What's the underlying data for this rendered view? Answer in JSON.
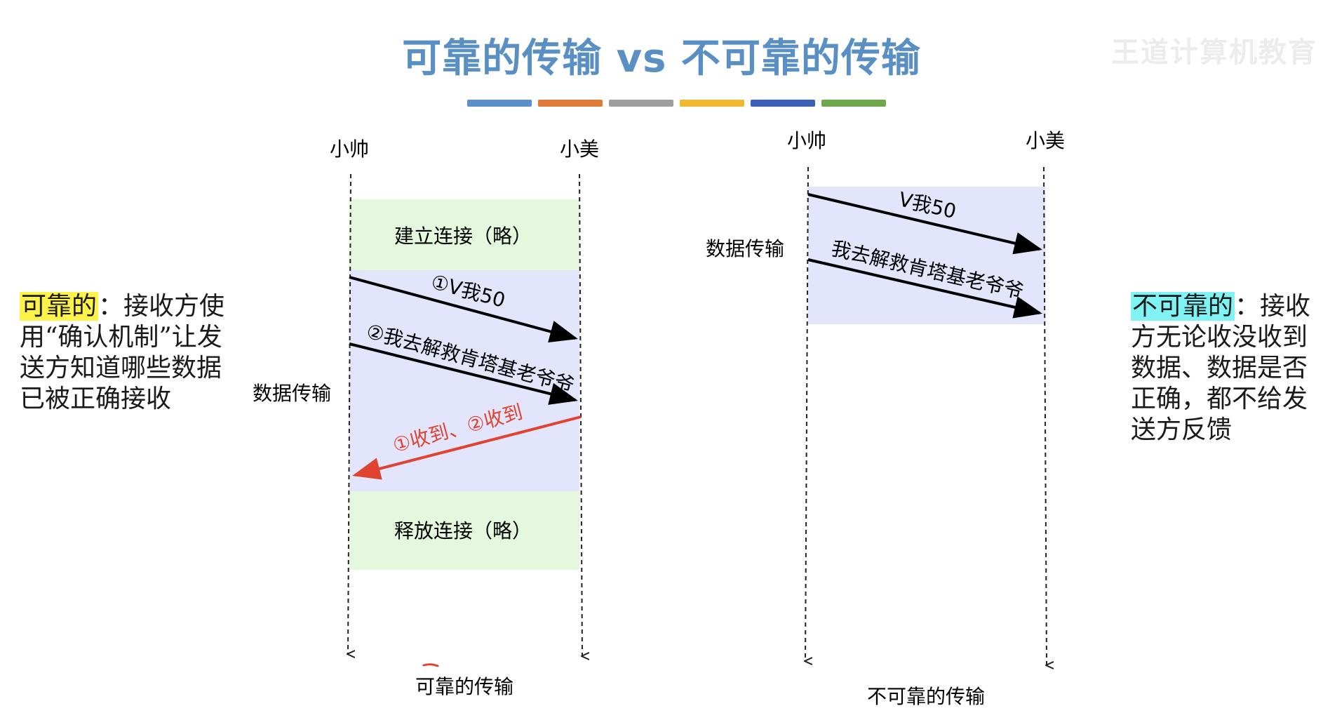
{
  "slide": {
    "title": "可靠的传输 vs 不可靠的传输",
    "watermark": "王道计算机教育",
    "stripe_colors": [
      "#5b8fc7",
      "#e07a3b",
      "#9e9e9e",
      "#f0b82c",
      "#3a5fb5",
      "#6fa84a"
    ]
  },
  "reliable": {
    "side_highlight": "可靠的",
    "side_text": "：接收方使用“确认机制”让发送方知道哪些数据已被正确接收",
    "highlight_color": "#fff34a",
    "sender": "小帅",
    "receiver": "小美",
    "connect_label": "建立连接（略）",
    "transfer_label": "数据传输",
    "msg1": "①V我50",
    "msg2": "②我去解救肯塔基老爷爷",
    "ack": "①收到、②收到",
    "release_label": "释放连接（略）",
    "caption": "可靠的传输"
  },
  "unreliable": {
    "side_highlight": "不可靠的",
    "side_text": "：接收方无论收没收到数据、数据是否正确，都不给发送方反馈",
    "highlight_color": "#7ff3f3",
    "sender": "小帅",
    "receiver": "小美",
    "transfer_label": "数据传输",
    "msg1": "V我50",
    "msg2": "我去解救肯塔基老爷爷",
    "caption": "不可靠的传输"
  },
  "colors": {
    "title": "#5a8fc4",
    "phase_green": "#e3f8dc",
    "phase_blue": "#e2e5fb",
    "ack_red": "#e0432f"
  }
}
